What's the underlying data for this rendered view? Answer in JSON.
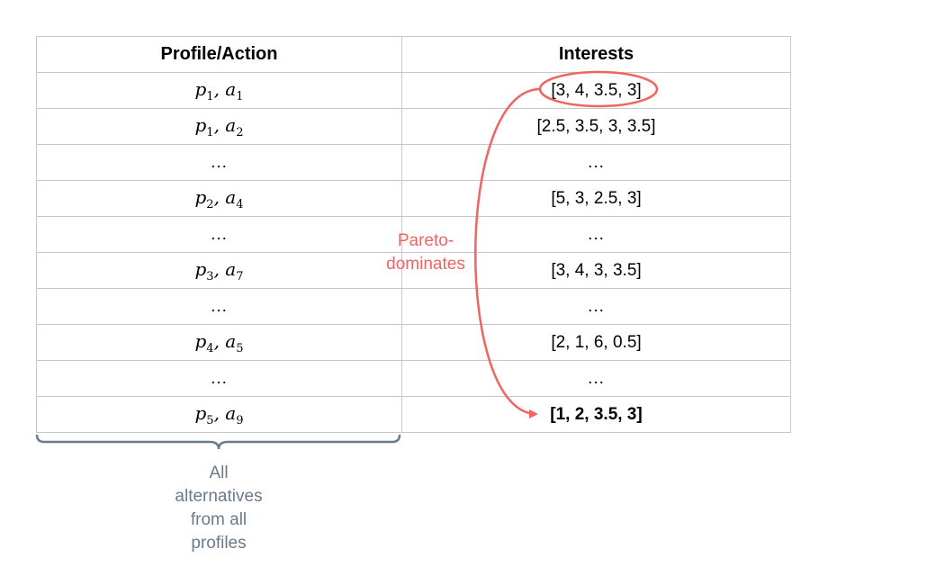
{
  "headers": {
    "col1": "Profile/Action",
    "col2": "Interests"
  },
  "rows": [
    {
      "p": "p",
      "pi": "1",
      "a": "a",
      "ai": "1",
      "value": "[3, 4, 3.5, 3]"
    },
    {
      "p": "p",
      "pi": "1",
      "a": "a",
      "ai": "2",
      "value": "[2.5, 3.5, 3, 3.5]"
    },
    {
      "dots1": "...",
      "dots2": "..."
    },
    {
      "p": "p",
      "pi": "2",
      "a": "a",
      "ai": "4",
      "value": "[5, 3, 2.5, 3]"
    },
    {
      "dots1": "...",
      "dots2": "..."
    },
    {
      "p": "p",
      "pi": "3",
      "a": "a",
      "ai": "7",
      "value": "[3, 4, 3, 3.5]"
    },
    {
      "dots1": "...",
      "dots2": "..."
    },
    {
      "p": "p",
      "pi": "4",
      "a": "a",
      "ai": "5",
      "value": "[2, 1, 6, 0.5]"
    },
    {
      "dots1": "...",
      "dots2": "..."
    },
    {
      "p": "p",
      "pi": "5",
      "a": "a",
      "ai": "9",
      "value": "[1, 2, 3.5, 3]"
    }
  ],
  "annotation": {
    "line1": "Pareto-",
    "line2": "dominates"
  },
  "caption": {
    "l1": "All",
    "l2": "alternatives",
    "l3": "from all",
    "l4": "profiles"
  },
  "colors": {
    "accent": "#f06461",
    "muted": "#6b7b8c",
    "border": "#c8c8c8"
  }
}
